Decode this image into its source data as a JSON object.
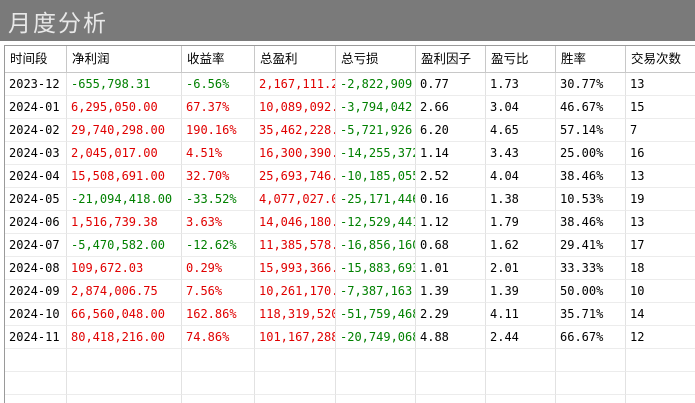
{
  "title": "月度分析",
  "columns": [
    "时间段",
    "净利润",
    "收益率",
    "总盈利",
    "总亏损",
    "盈利因子",
    "盈亏比",
    "胜率",
    "交易次数"
  ],
  "rows": [
    [
      "2023-12",
      "-655,798.31",
      "-6.56%",
      "2,167,111.2",
      "-2,822,909.",
      "0.77",
      "1.73",
      "30.77%",
      "13"
    ],
    [
      "2024-01",
      "6,295,050.00",
      "67.37%",
      "10,089,092.",
      "-3,794,042.",
      "2.66",
      "3.04",
      "46.67%",
      "15"
    ],
    [
      "2024-02",
      "29,740,298.00",
      "190.16%",
      "35,462,228.",
      "-5,721,926.",
      "6.20",
      "4.65",
      "57.14%",
      "7"
    ],
    [
      "2024-03",
      "2,045,017.00",
      "4.51%",
      "16,300,390.",
      "-14,255,372",
      "1.14",
      "3.43",
      "25.00%",
      "16"
    ],
    [
      "2024-04",
      "15,508,691.00",
      "32.70%",
      "25,693,746.",
      "-10,185,055",
      "2.52",
      "4.04",
      "38.46%",
      "13"
    ],
    [
      "2024-05",
      "-21,094,418.00",
      "-33.52%",
      "4,077,027.0",
      "-25,171,446",
      "0.16",
      "1.38",
      "10.53%",
      "19"
    ],
    [
      "2024-06",
      "1,516,739.38",
      "3.63%",
      "14,046,180.",
      "-12,529,441",
      "1.12",
      "1.79",
      "38.46%",
      "13"
    ],
    [
      "2024-07",
      "-5,470,582.00",
      "-12.62%",
      "11,385,578.",
      "-16,856,160",
      "0.68",
      "1.62",
      "29.41%",
      "17"
    ],
    [
      "2024-08",
      "109,672.03",
      "0.29%",
      "15,993,366.",
      "-15,883,693",
      "1.01",
      "2.01",
      "33.33%",
      "18"
    ],
    [
      "2024-09",
      "2,874,006.75",
      "7.56%",
      "10,261,170.",
      "-7,387,163.",
      "1.39",
      "1.39",
      "50.00%",
      "10"
    ],
    [
      "2024-10",
      "66,560,048.00",
      "162.86%",
      "118,319,520",
      "-51,759,468",
      "2.29",
      "4.11",
      "35.71%",
      "14"
    ],
    [
      "2024-11",
      "80,418,216.00",
      "74.86%",
      "101,167,288",
      "-20,749,068",
      "4.88",
      "2.44",
      "66.67%",
      "12"
    ]
  ],
  "colors": {
    "positive": "#e00000",
    "negative": "#008000",
    "titlebar": "#7a7a7a"
  }
}
